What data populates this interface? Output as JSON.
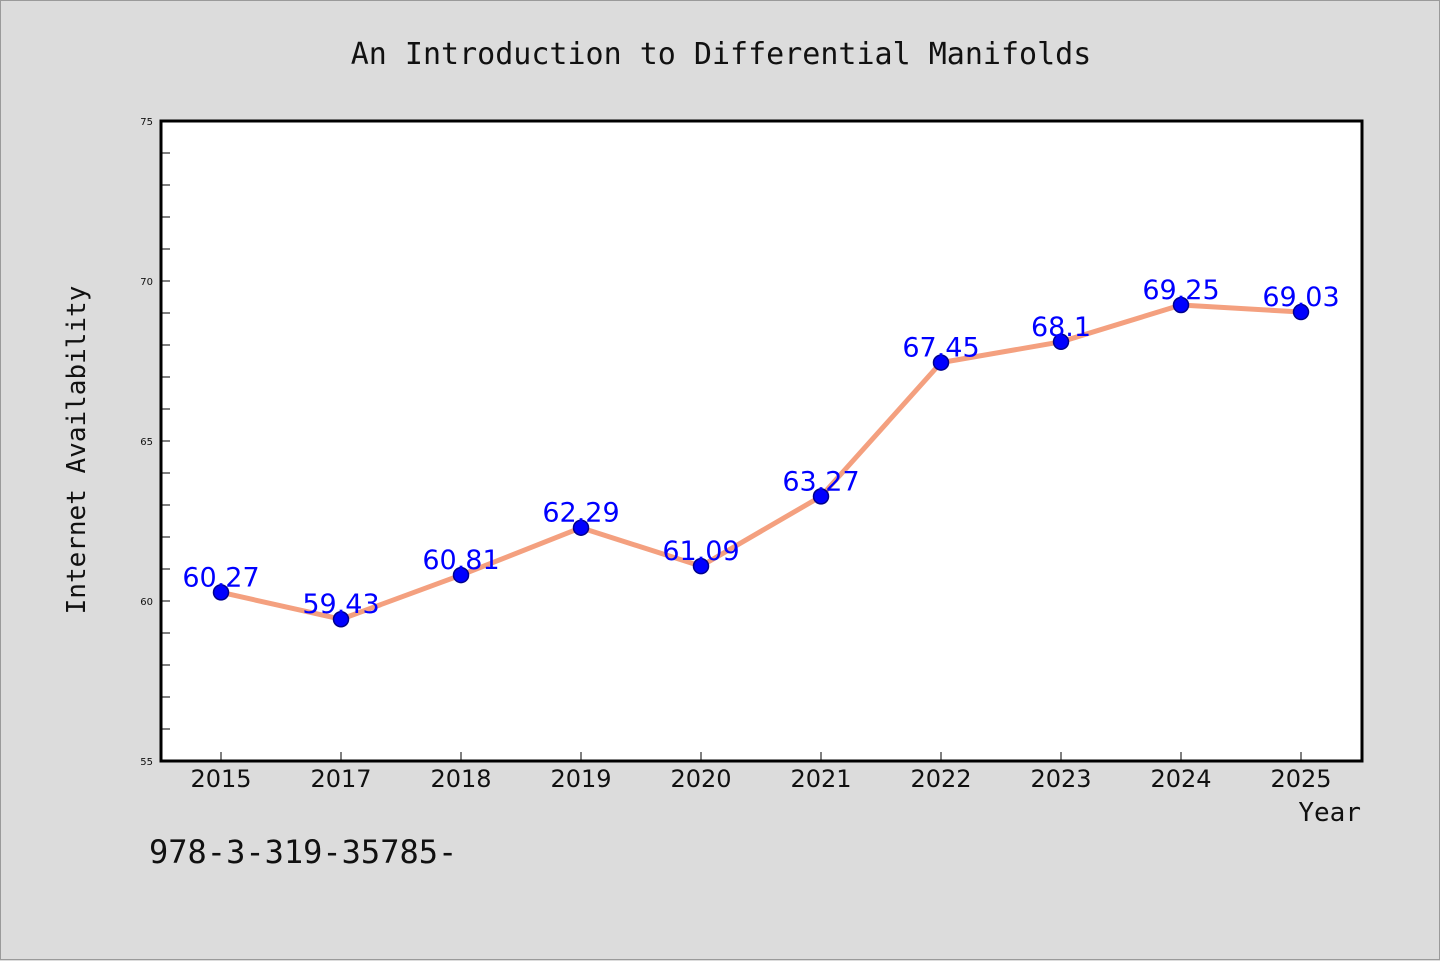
{
  "footer_code": "978-3-319-35785-",
  "chart_data": {
    "type": "line",
    "title": "An Introduction to Differential Manifolds",
    "xlabel": "Year",
    "ylabel": "Internet Availability",
    "categories": [
      "2015",
      "2017",
      "2018",
      "2019",
      "2020",
      "2021",
      "2022",
      "2023",
      "2024",
      "2025"
    ],
    "series": [
      {
        "values": [
          60.27,
          59.43,
          60.81,
          62.29,
          61.09,
          63.27,
          67.45,
          68.1,
          69.25,
          69.03
        ],
        "data_labels": [
          "60.27",
          "59.43",
          "60.81",
          "62.29",
          "61.09",
          "63.27",
          "67.45",
          "68.1",
          "69.25",
          "69.03"
        ]
      }
    ],
    "ylim": [
      55,
      75
    ],
    "y_major_ticks": [
      "55",
      "60",
      "65",
      "70",
      "75"
    ],
    "grid": false,
    "colors": {
      "line": "#f4a07f",
      "marker": "#0000ff",
      "marker_edge": "#00008b",
      "label": "#0000ff",
      "plot_bg": "#ffffff",
      "page_bg": "#dcdcdc"
    }
  }
}
